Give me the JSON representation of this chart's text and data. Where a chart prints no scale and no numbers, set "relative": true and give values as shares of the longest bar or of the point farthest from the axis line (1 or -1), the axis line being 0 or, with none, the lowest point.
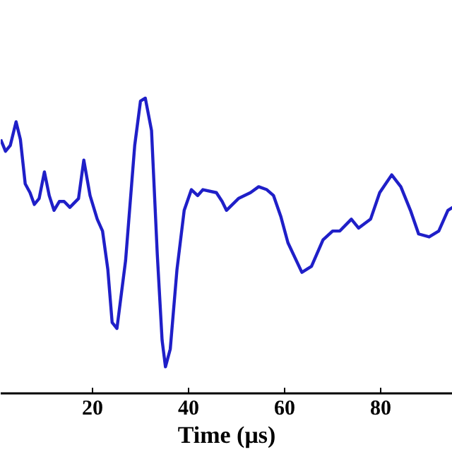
{
  "chart_data": {
    "type": "line",
    "xlabel": "Time (μs)",
    "relative": true,
    "xlim": [
      0.9,
      95
    ],
    "xticks": [
      20,
      40,
      60,
      80
    ],
    "grid": false,
    "line_style": "solid",
    "series": [
      {
        "color": "#1f1fc8",
        "x": [
          0.9,
          1.9,
          2.9,
          4.1,
          5.0,
          6.0,
          7.0,
          7.9,
          8.9,
          10.0,
          11.0,
          12.0,
          13.1,
          14.1,
          15.3,
          17.1,
          18.2,
          19.5,
          21.0,
          22.1,
          23.2,
          24.1,
          25.1,
          26.9,
          28.8,
          30.0,
          31.0,
          32.3,
          33.5,
          34.5,
          35.2,
          36.2,
          37.6,
          39.1,
          40.6,
          41.9,
          43.0,
          45.8,
          47.0,
          47.9,
          50.4,
          52.9,
          54.6,
          56.3,
          57.7,
          59.2,
          60.7,
          63.6,
          65.6,
          68.0,
          70.0,
          71.5,
          73.9,
          75.4,
          77.9,
          79.8,
          82.3,
          84.2,
          86.2,
          87.9,
          90.1,
          92.1,
          94.0,
          95.0
        ],
        "values": [
          0.86,
          0.82,
          0.84,
          0.92,
          0.86,
          0.71,
          0.68,
          0.64,
          0.66,
          0.75,
          0.67,
          0.62,
          0.65,
          0.65,
          0.63,
          0.66,
          0.79,
          0.67,
          0.59,
          0.55,
          0.42,
          0.24,
          0.22,
          0.45,
          0.84,
          0.99,
          1.0,
          0.89,
          0.47,
          0.18,
          0.09,
          0.15,
          0.42,
          0.62,
          0.69,
          0.67,
          0.69,
          0.68,
          0.65,
          0.62,
          0.66,
          0.68,
          0.7,
          0.69,
          0.67,
          0.6,
          0.51,
          0.41,
          0.43,
          0.52,
          0.55,
          0.55,
          0.59,
          0.56,
          0.59,
          0.68,
          0.74,
          0.7,
          0.62,
          0.54,
          0.53,
          0.55,
          0.62,
          0.63
        ]
      }
    ]
  }
}
